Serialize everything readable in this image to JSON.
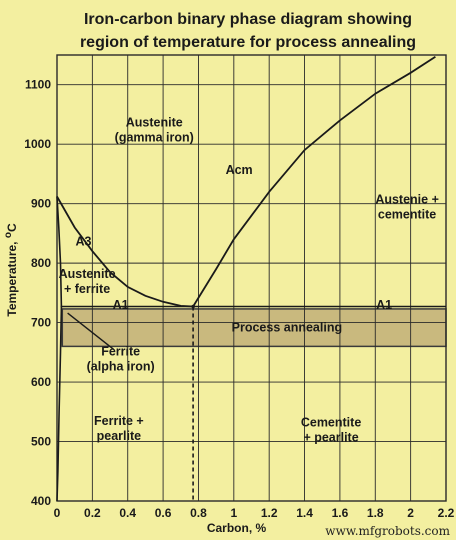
{
  "title_line1": "Iron-carbon binary phase diagram showing",
  "title_line2": "region of temperature for process annealing",
  "watermark": "www.mfgrobots.com",
  "colors": {
    "background": "#f3efa0",
    "grid": "#2a2a2a",
    "curve": "#1a1a1a",
    "band_fill": "#c9b97e",
    "band_edge": "#3a3a3a"
  },
  "chart_data": {
    "type": "line",
    "xlabel": "Carbon, %",
    "ylabel": "Temperature, ",
    "ylabel_unit": "C",
    "ylabel_degree": "o",
    "xlim": [
      0,
      2.2
    ],
    "ylim": [
      400,
      1150
    ],
    "xticks": [
      {
        "v": 0,
        "label": "0"
      },
      {
        "v": 0.2,
        "label": "0.2"
      },
      {
        "v": 0.4,
        "label": "0.4"
      },
      {
        "v": 0.6,
        "label": "0.6"
      },
      {
        "v": 0.8,
        "label": "0.8"
      },
      {
        "v": 1.0,
        "label": "1"
      },
      {
        "v": 1.2,
        "label": "1.2"
      },
      {
        "v": 1.4,
        "label": "1.4"
      },
      {
        "v": 1.6,
        "label": "1.6"
      },
      {
        "v": 1.8,
        "label": "1.8"
      },
      {
        "v": 2.0,
        "label": "2"
      },
      {
        "v": 2.2,
        "label": "2.2"
      }
    ],
    "yticks": [
      {
        "v": 400,
        "label": "400"
      },
      {
        "v": 500,
        "label": "500"
      },
      {
        "v": 600,
        "label": "600"
      },
      {
        "v": 700,
        "label": "700"
      },
      {
        "v": 800,
        "label": "800"
      },
      {
        "v": 900,
        "label": "900"
      },
      {
        "v": 1000,
        "label": "1000"
      },
      {
        "v": 1100,
        "label": "1100"
      }
    ],
    "grid": true,
    "series": [
      {
        "name": "A3",
        "points": [
          [
            0,
            912
          ],
          [
            0.1,
            860
          ],
          [
            0.2,
            820
          ],
          [
            0.3,
            785
          ],
          [
            0.4,
            760
          ],
          [
            0.5,
            745
          ],
          [
            0.6,
            735
          ],
          [
            0.7,
            728
          ],
          [
            0.77,
            727
          ]
        ]
      },
      {
        "name": "Acm",
        "points": [
          [
            0.77,
            727
          ],
          [
            0.9,
            790
          ],
          [
            1.0,
            840
          ],
          [
            1.1,
            880
          ],
          [
            1.2,
            920
          ],
          [
            1.4,
            990
          ],
          [
            1.6,
            1040
          ],
          [
            1.8,
            1085
          ],
          [
            2.0,
            1120
          ],
          [
            2.14,
            1147
          ]
        ]
      },
      {
        "name": "A1",
        "points": [
          [
            0.02,
            727
          ],
          [
            2.2,
            727
          ]
        ]
      }
    ],
    "extra_lines": [
      {
        "points": [
          [
            0,
            912
          ],
          [
            0.01,
            860
          ],
          [
            0.02,
            800
          ],
          [
            0.025,
            727
          ]
        ]
      },
      {
        "points": [
          [
            0.025,
            727
          ],
          [
            0.02,
            650
          ],
          [
            0.012,
            550
          ],
          [
            0.005,
            450
          ],
          [
            0.0,
            400
          ]
        ]
      },
      {
        "points": [
          [
            0.77,
            727
          ],
          [
            0.77,
            400
          ]
        ],
        "dashed": true
      }
    ],
    "band": {
      "label": "Process annealing",
      "y_range": [
        660,
        723
      ],
      "x_range": [
        0.03,
        2.2
      ]
    },
    "annotations": [
      {
        "lines": [
          "Austenite",
          "(gamma iron)"
        ],
        "x": 0.55,
        "y": 1030
      },
      {
        "lines": [
          "Acm"
        ],
        "x": 1.03,
        "y": 950
      },
      {
        "lines": [
          "Austenie +",
          "cementite"
        ],
        "x": 1.98,
        "y": 900
      },
      {
        "lines": [
          "A3"
        ],
        "x": 0.15,
        "y": 830
      },
      {
        "lines": [
          "Austenite",
          "+ ferrite"
        ],
        "x": 0.17,
        "y": 775
      },
      {
        "lines": [
          "A1"
        ],
        "x": 0.36,
        "y": 723
      },
      {
        "lines": [
          "A1"
        ],
        "x": 1.85,
        "y": 723
      },
      {
        "lines": [
          "Ferrite",
          "(alpha iron)"
        ],
        "x": 0.36,
        "y": 645
      },
      {
        "lines": [
          "Ferrite +",
          "pearlite"
        ],
        "x": 0.35,
        "y": 528
      },
      {
        "lines": [
          "Cementite",
          "+ pearlite"
        ],
        "x": 1.55,
        "y": 525
      }
    ]
  }
}
